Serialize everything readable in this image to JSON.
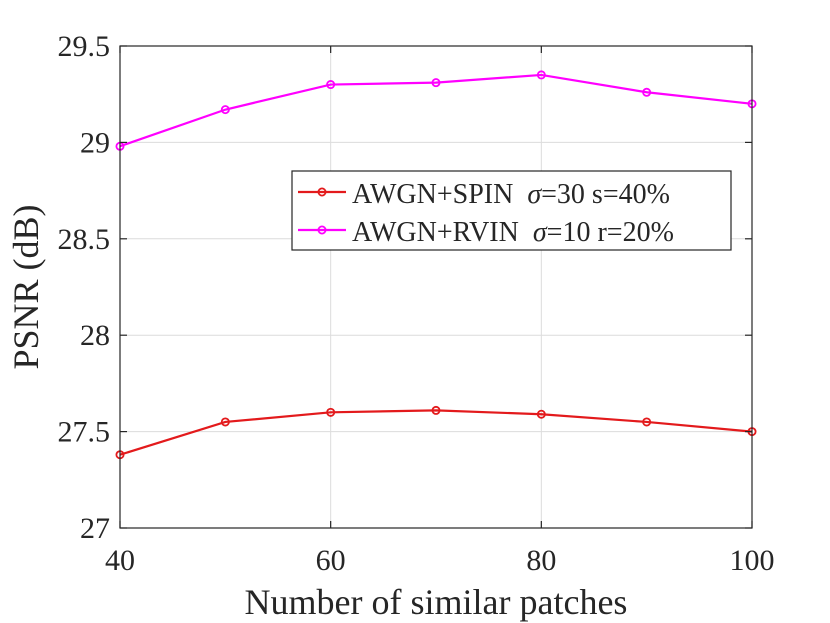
{
  "chart_data": {
    "type": "line",
    "title": "",
    "xlabel": "Number of similar patches",
    "ylabel": "PSNR (dB)",
    "xlim": [
      40,
      100
    ],
    "ylim": [
      27,
      29.5
    ],
    "xticks": [
      40,
      60,
      80,
      100
    ],
    "yticks": [
      27,
      27.5,
      28,
      28.5,
      29,
      29.5
    ],
    "x_tick_labels": [
      "40",
      "60",
      "80",
      "100"
    ],
    "y_tick_labels": [
      "27",
      "27.5",
      "28",
      "28.5",
      "29",
      "29.5"
    ],
    "grid": true,
    "legend_position": "upper-right",
    "x": [
      40,
      50,
      60,
      70,
      80,
      90,
      100
    ],
    "series": [
      {
        "name": "AWGN+SPIN σ=30 s=40%",
        "name_prefix": "AWGN+SPIN  ",
        "name_sigma": "σ",
        "name_suffix": "=30 s=40%",
        "color": "#e31a1c",
        "values": [
          27.38,
          27.55,
          27.6,
          27.61,
          27.59,
          27.55,
          27.5
        ]
      },
      {
        "name": "AWGN+RVIN σ=10 r=20%",
        "name_prefix": "AWGN+RVIN  ",
        "name_sigma": "σ",
        "name_suffix": "=10 r=20%",
        "color": "#ff00ff",
        "values": [
          28.98,
          29.17,
          29.3,
          29.31,
          29.35,
          29.26,
          29.2
        ]
      }
    ]
  }
}
